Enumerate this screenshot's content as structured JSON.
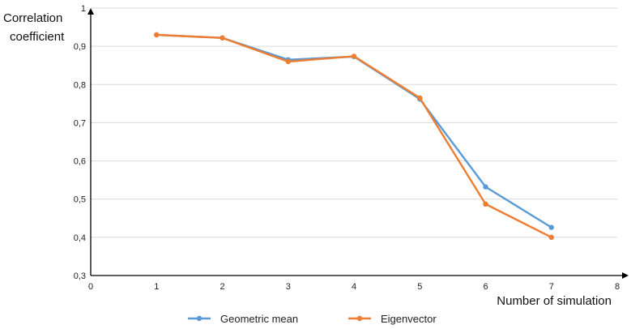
{
  "chart_data": {
    "type": "line",
    "xlabel": "Number of simulation",
    "ylabel_lines": [
      "Correlation",
      "coefficient"
    ],
    "xlim": [
      0,
      8
    ],
    "ylim": [
      0.3,
      1.0
    ],
    "x_ticks": [
      "0",
      "1",
      "2",
      "3",
      "4",
      "5",
      "6",
      "7",
      "8"
    ],
    "y_ticks": [
      "0,3",
      "0,4",
      "0,5",
      "0,6",
      "0,7",
      "0,8",
      "0,9",
      "1"
    ],
    "grid": "horizontal",
    "legend_position": "bottom",
    "x": [
      1,
      2,
      3,
      4,
      5,
      6,
      7
    ],
    "series": [
      {
        "name": "Geometric mean",
        "color": "#5b9bd5",
        "values": [
          0.93,
          0.922,
          0.865,
          0.873,
          0.762,
          0.532,
          0.426
        ]
      },
      {
        "name": "Eigenvector",
        "color": "#ed7d31",
        "values": [
          0.93,
          0.922,
          0.86,
          0.874,
          0.765,
          0.487,
          0.4
        ]
      }
    ]
  }
}
